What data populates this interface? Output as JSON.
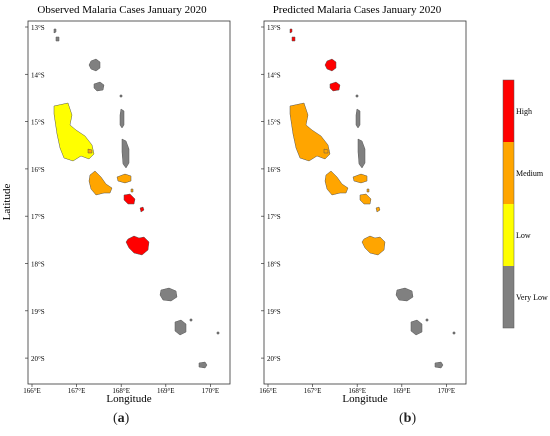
{
  "maps": [
    {
      "title": "Observed Malaria Cases January 2020",
      "xlabel": "Longitude",
      "ylabel": "Latitude",
      "caption_letter": "a",
      "islands": [
        {
          "name": "torres-north",
          "cls": "Very Low"
        },
        {
          "name": "torres-south",
          "cls": "Very Low"
        },
        {
          "name": "vanua-lava",
          "cls": "Very Low"
        },
        {
          "name": "gaua",
          "cls": "Very Low"
        },
        {
          "name": "merelava",
          "cls": "Very Low"
        },
        {
          "name": "maewo",
          "cls": "Very Low"
        },
        {
          "name": "pentecost",
          "cls": "Very Low"
        },
        {
          "name": "espiritu-santo",
          "cls": "Low"
        },
        {
          "name": "malo",
          "cls": "Medium"
        },
        {
          "name": "malakula",
          "cls": "Medium"
        },
        {
          "name": "ambrym",
          "cls": "Medium"
        },
        {
          "name": "paama",
          "cls": "Medium"
        },
        {
          "name": "epi",
          "cls": "High"
        },
        {
          "name": "tongoa",
          "cls": "High"
        },
        {
          "name": "efate",
          "cls": "High"
        },
        {
          "name": "erromango",
          "cls": "Very Low"
        },
        {
          "name": "tanna",
          "cls": "Very Low"
        },
        {
          "name": "aniwa",
          "cls": "Very Low"
        },
        {
          "name": "futuna",
          "cls": "Very Low"
        },
        {
          "name": "aneityum",
          "cls": "Very Low"
        }
      ]
    },
    {
      "title": "Predicted Malaria Cases January 2020",
      "xlabel": "Longitude",
      "ylabel": "",
      "caption_letter": "b",
      "islands": [
        {
          "name": "torres-north",
          "cls": "High"
        },
        {
          "name": "torres-south",
          "cls": "High"
        },
        {
          "name": "vanua-lava",
          "cls": "High"
        },
        {
          "name": "gaua",
          "cls": "High"
        },
        {
          "name": "merelava",
          "cls": "Very Low"
        },
        {
          "name": "maewo",
          "cls": "Very Low"
        },
        {
          "name": "pentecost",
          "cls": "Very Low"
        },
        {
          "name": "espiritu-santo",
          "cls": "Medium"
        },
        {
          "name": "malo",
          "cls": "Medium"
        },
        {
          "name": "malakula",
          "cls": "Medium"
        },
        {
          "name": "ambrym",
          "cls": "Medium"
        },
        {
          "name": "paama",
          "cls": "Medium"
        },
        {
          "name": "epi",
          "cls": "Medium"
        },
        {
          "name": "tongoa",
          "cls": "Medium"
        },
        {
          "name": "efate",
          "cls": "Medium"
        },
        {
          "name": "erromango",
          "cls": "Very Low"
        },
        {
          "name": "tanna",
          "cls": "Very Low"
        },
        {
          "name": "aniwa",
          "cls": "Very Low"
        },
        {
          "name": "futuna",
          "cls": "Very Low"
        },
        {
          "name": "aneityum",
          "cls": "Very Low"
        }
      ]
    }
  ],
  "axis": {
    "lon_ticks": [
      "166°E",
      "167°E",
      "168°E",
      "169°E",
      "170°E"
    ],
    "lat_ticks": [
      "13°S",
      "14°S",
      "15°S",
      "16°S",
      "17°S",
      "18°S",
      "19°S",
      "20°S"
    ]
  },
  "legend": [
    {
      "label": "High",
      "color": "#ff0000"
    },
    {
      "label": "Medium",
      "color": "#ffa500"
    },
    {
      "label": "Low",
      "color": "#ffff00"
    },
    {
      "label": "Very Low",
      "color": "#808080"
    }
  ]
}
